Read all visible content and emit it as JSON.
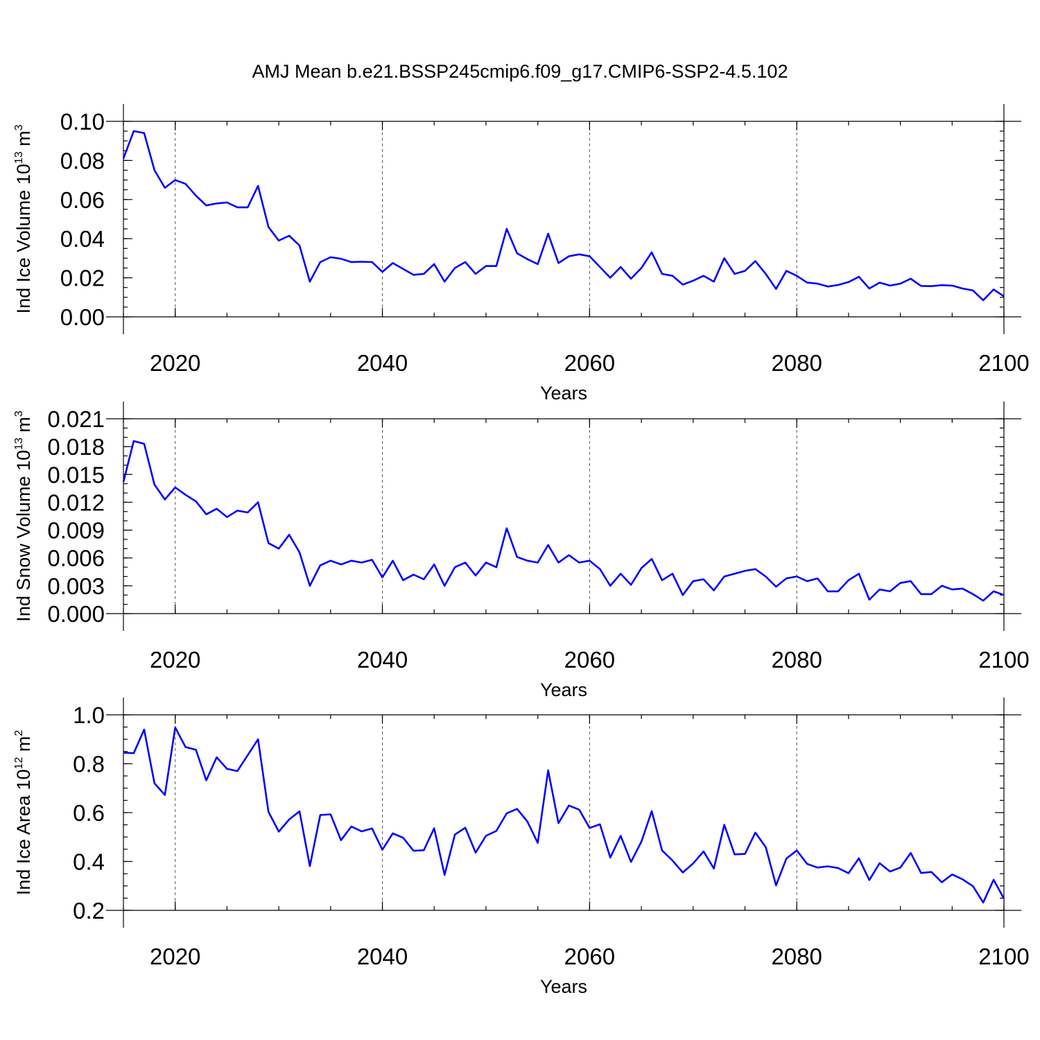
{
  "title": "AMJ Mean b.e21.BSSP245cmip6.f09_g17.CMIP6-SSP2-4.5.102",
  "line_color": "#0000ff",
  "chart_data": [
    {
      "type": "line",
      "name": "ice-volume",
      "ylabel": "Ind Ice Volume 10",
      "ylabel_exp": "13",
      "ylabel_unit": " m",
      "ylabel_unit_exp": "3",
      "xlabel": "Years",
      "xlim": [
        2015,
        2100
      ],
      "ylim": [
        0.0,
        0.1
      ],
      "xticks": [
        2020,
        2040,
        2060,
        2080,
        2100
      ],
      "xtick_labels": [
        "2020",
        "2040",
        "2060",
        "2080",
        "2100"
      ],
      "yticks": [
        0.0,
        0.02,
        0.04,
        0.06,
        0.08,
        0.1
      ],
      "ytick_labels": [
        "0.00",
        "0.02",
        "0.04",
        "0.06",
        "0.08",
        "0.10"
      ],
      "y_minor_step": 0.005,
      "x_start": 2015,
      "values": [
        0.081,
        0.095,
        0.094,
        0.075,
        0.066,
        0.07,
        0.068,
        0.062,
        0.057,
        0.058,
        0.0585,
        0.056,
        0.056,
        0.067,
        0.046,
        0.039,
        0.0415,
        0.0365,
        0.018,
        0.028,
        0.0305,
        0.0297,
        0.028,
        0.0282,
        0.028,
        0.023,
        0.0275,
        0.0245,
        0.0215,
        0.022,
        0.027,
        0.018,
        0.025,
        0.028,
        0.022,
        0.026,
        0.026,
        0.045,
        0.0325,
        0.0295,
        0.027,
        0.0425,
        0.0275,
        0.031,
        0.032,
        0.031,
        0.0255,
        0.02,
        0.0255,
        0.0195,
        0.025,
        0.033,
        0.022,
        0.021,
        0.0165,
        0.0185,
        0.021,
        0.018,
        0.03,
        0.022,
        0.0235,
        0.0285,
        0.022,
        0.0143,
        0.0235,
        0.021,
        0.0175,
        0.017,
        0.0155,
        0.0163,
        0.0178,
        0.0205,
        0.0145,
        0.0175,
        0.016,
        0.017,
        0.0195,
        0.0158,
        0.0157,
        0.0162,
        0.016,
        0.0145,
        0.0135,
        0.0085,
        0.014,
        0.0105
      ]
    },
    {
      "type": "line",
      "name": "snow-volume",
      "ylabel": "Ind Snow Volume 10",
      "ylabel_exp": "13",
      "ylabel_unit": " m",
      "ylabel_unit_exp": "3",
      "xlabel": "Years",
      "xlim": [
        2015,
        2100
      ],
      "ylim": [
        0.0,
        0.021
      ],
      "xticks": [
        2020,
        2040,
        2060,
        2080,
        2100
      ],
      "xtick_labels": [
        "2020",
        "2040",
        "2060",
        "2080",
        "2100"
      ],
      "yticks": [
        0.0,
        0.003,
        0.006,
        0.009,
        0.012,
        0.015,
        0.018,
        0.021
      ],
      "ytick_labels": [
        "0.000",
        "0.003",
        "0.006",
        "0.009",
        "0.012",
        "0.015",
        "0.018",
        "0.021"
      ],
      "y_minor_step": 0.001,
      "x_start": 2015,
      "values": [
        0.0142,
        0.0186,
        0.0183,
        0.0139,
        0.0123,
        0.0136,
        0.0128,
        0.0121,
        0.0107,
        0.0113,
        0.0104,
        0.0111,
        0.0109,
        0.012,
        0.0076,
        0.007,
        0.0085,
        0.0066,
        0.003,
        0.0052,
        0.0057,
        0.0053,
        0.0057,
        0.0055,
        0.0058,
        0.0039,
        0.0057,
        0.0036,
        0.0042,
        0.0037,
        0.0053,
        0.003,
        0.005,
        0.0055,
        0.0041,
        0.0055,
        0.005,
        0.0092,
        0.0061,
        0.0057,
        0.0055,
        0.0074,
        0.0055,
        0.0063,
        0.0055,
        0.0057,
        0.0048,
        0.003,
        0.0043,
        0.0031,
        0.0049,
        0.0059,
        0.0036,
        0.0043,
        0.002,
        0.0035,
        0.0037,
        0.0025,
        0.004,
        0.0043,
        0.0046,
        0.0048,
        0.004,
        0.0029,
        0.0038,
        0.004,
        0.0035,
        0.0038,
        0.0024,
        0.0024,
        0.0036,
        0.0043,
        0.0015,
        0.0026,
        0.0024,
        0.0033,
        0.0035,
        0.0021,
        0.0021,
        0.003,
        0.0026,
        0.0027,
        0.0021,
        0.0014,
        0.0024,
        0.002
      ]
    },
    {
      "type": "line",
      "name": "ice-area",
      "ylabel": "Ind Ice Area 10",
      "ylabel_exp": "12",
      "ylabel_unit": " m",
      "ylabel_unit_exp": "2",
      "xlabel": "Years",
      "xlim": [
        2015,
        2100
      ],
      "ylim": [
        0.2,
        1.0
      ],
      "xticks": [
        2020,
        2040,
        2060,
        2080,
        2100
      ],
      "xtick_labels": [
        "2020",
        "2040",
        "2060",
        "2080",
        "2100"
      ],
      "yticks": [
        0.2,
        0.4,
        0.6,
        0.8,
        1.0
      ],
      "ytick_labels": [
        "0.2",
        "0.4",
        "0.6",
        "0.8",
        "1.0"
      ],
      "y_minor_step": 0.05,
      "x_start": 2015,
      "values": [
        0.845,
        0.843,
        0.94,
        0.72,
        0.672,
        0.948,
        0.868,
        0.857,
        0.732,
        0.826,
        0.779,
        0.77,
        0.835,
        0.9,
        0.603,
        0.522,
        0.572,
        0.605,
        0.381,
        0.59,
        0.593,
        0.487,
        0.543,
        0.523,
        0.535,
        0.448,
        0.515,
        0.497,
        0.444,
        0.446,
        0.536,
        0.345,
        0.51,
        0.538,
        0.436,
        0.505,
        0.525,
        0.597,
        0.615,
        0.563,
        0.476,
        0.773,
        0.557,
        0.629,
        0.612,
        0.537,
        0.552,
        0.416,
        0.505,
        0.398,
        0.481,
        0.606,
        0.445,
        0.404,
        0.355,
        0.392,
        0.441,
        0.371,
        0.55,
        0.429,
        0.431,
        0.518,
        0.459,
        0.302,
        0.412,
        0.445,
        0.39,
        0.375,
        0.38,
        0.373,
        0.352,
        0.413,
        0.324,
        0.393,
        0.359,
        0.375,
        0.435,
        0.353,
        0.357,
        0.315,
        0.347,
        0.327,
        0.299,
        0.232,
        0.325,
        0.248
      ]
    }
  ]
}
